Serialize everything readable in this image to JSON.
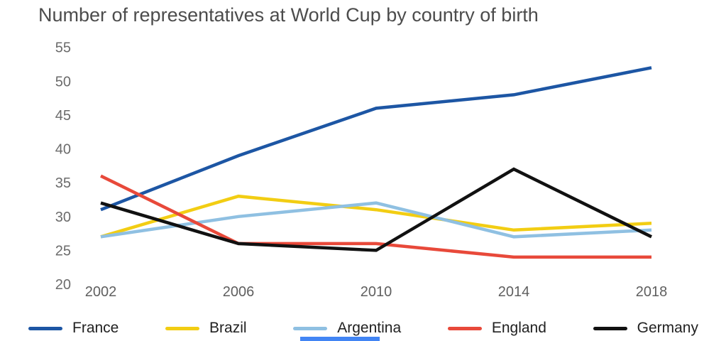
{
  "chart_data": {
    "type": "line",
    "title": "Number of representatives at World Cup by country of birth",
    "x": [
      2002,
      2006,
      2010,
      2014,
      2018
    ],
    "series": [
      {
        "name": "France",
        "color": "#1d56a4",
        "values": [
          31,
          39,
          46,
          48,
          52
        ]
      },
      {
        "name": "Brazil",
        "color": "#f2cd13",
        "values": [
          27,
          33,
          31,
          28,
          29
        ]
      },
      {
        "name": "Argentina",
        "color": "#8fc0e2",
        "values": [
          27,
          30,
          32,
          27,
          28
        ]
      },
      {
        "name": "England",
        "color": "#e8493a",
        "values": [
          36,
          26,
          26,
          24,
          24
        ]
      },
      {
        "name": "Germany",
        "color": "#111111",
        "values": [
          32,
          26,
          25,
          37,
          27
        ]
      }
    ],
    "ylim": [
      20,
      55
    ],
    "y_ticks": [
      55,
      50,
      45,
      40,
      35,
      30,
      25,
      20
    ],
    "grid": false,
    "legend_position": "bottom"
  },
  "footer_artifact": {
    "color": "#4285f4"
  }
}
